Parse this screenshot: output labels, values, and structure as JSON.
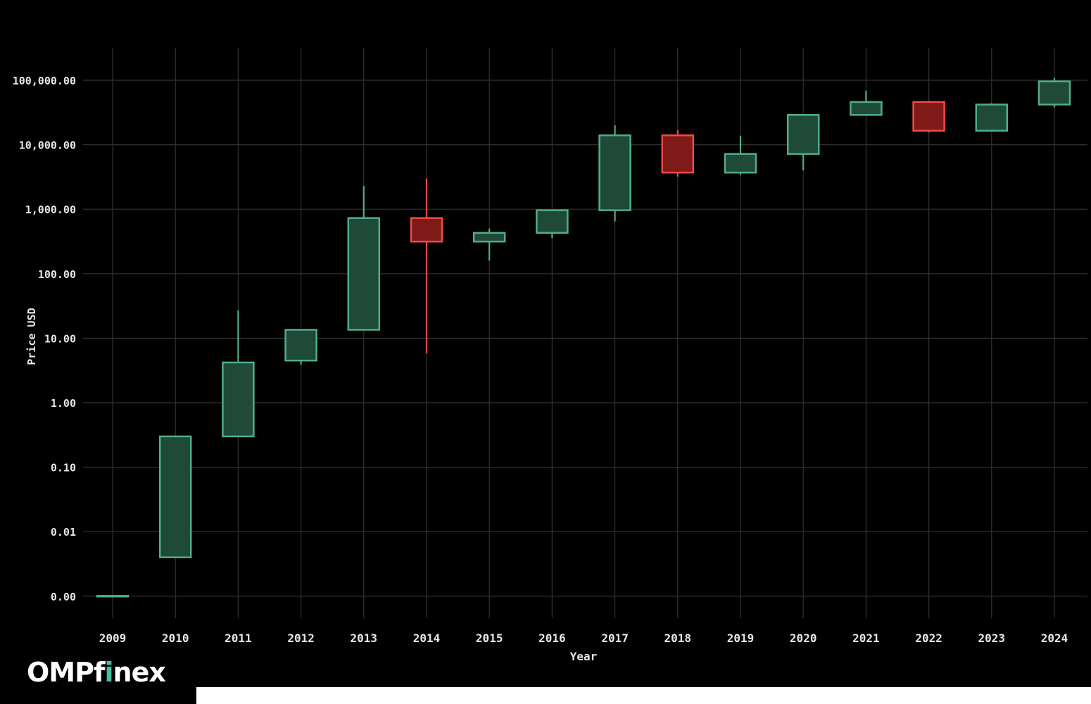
{
  "brand": {
    "name": "OMPfinex",
    "accent": "#3fc1a4"
  },
  "colors": {
    "up_fill": "#1f4a38",
    "up_stroke": "#4fae8a",
    "down_fill": "#7e1a17",
    "down_stroke": "#f04a44",
    "grid": "#333333",
    "text": "#e6e6e6"
  },
  "chart_data": {
    "type": "candlestick",
    "xlabel": "Year",
    "ylabel": "Price USD",
    "yscale": "log",
    "ylim": [
      0.0001,
      100000
    ],
    "ytick_values": [
      0.001,
      0.01,
      0.1,
      1,
      10,
      100,
      1000,
      10000,
      100000
    ],
    "ytick_labels": [
      "0.00",
      "0.01",
      "0.10",
      "1.00",
      "10.00",
      "100.00",
      "1,000.00",
      "10,000.00",
      "100,000.00"
    ],
    "grid": true,
    "categories": [
      "2009",
      "2010",
      "2011",
      "2012",
      "2013",
      "2014",
      "2015",
      "2016",
      "2017",
      "2018",
      "2019",
      "2020",
      "2021",
      "2022",
      "2023",
      "2024"
    ],
    "candles": [
      {
        "year": "2009",
        "open": 0.001,
        "close": 0.001,
        "high": 0.001,
        "low": 0.001,
        "direction": "up"
      },
      {
        "year": "2010",
        "open": 0.004,
        "close": 0.3,
        "high": 0.3,
        "low": 0.004,
        "direction": "up"
      },
      {
        "year": "2011",
        "open": 0.3,
        "close": 4.2,
        "high": 27,
        "low": 0.3,
        "direction": "up"
      },
      {
        "year": "2012",
        "open": 4.5,
        "close": 13.5,
        "high": 13.5,
        "low": 3.9,
        "direction": "up"
      },
      {
        "year": "2013",
        "open": 13.5,
        "close": 730,
        "high": 2300,
        "low": 13.5,
        "direction": "up"
      },
      {
        "year": "2014",
        "open": 730,
        "close": 315,
        "high": 3000,
        "low": 5.8,
        "direction": "down"
      },
      {
        "year": "2015",
        "open": 315,
        "close": 430,
        "high": 500,
        "low": 160,
        "direction": "up"
      },
      {
        "year": "2016",
        "open": 430,
        "close": 965,
        "high": 965,
        "low": 355,
        "direction": "up"
      },
      {
        "year": "2017",
        "open": 965,
        "close": 14000,
        "high": 20000,
        "low": 650,
        "direction": "up"
      },
      {
        "year": "2018",
        "open": 14000,
        "close": 3700,
        "high": 17000,
        "low": 3200,
        "direction": "down"
      },
      {
        "year": "2019",
        "open": 3700,
        "close": 7200,
        "high": 13800,
        "low": 3400,
        "direction": "up"
      },
      {
        "year": "2020",
        "open": 7200,
        "close": 29000,
        "high": 29000,
        "low": 4000,
        "direction": "up"
      },
      {
        "year": "2021",
        "open": 29000,
        "close": 46000,
        "high": 69000,
        "low": 29000,
        "direction": "up"
      },
      {
        "year": "2022",
        "open": 46000,
        "close": 16500,
        "high": 48000,
        "low": 15500,
        "direction": "down"
      },
      {
        "year": "2023",
        "open": 16500,
        "close": 42000,
        "high": 44000,
        "low": 16500,
        "direction": "up"
      },
      {
        "year": "2024",
        "open": 42000,
        "close": 96000,
        "high": 108000,
        "low": 38000,
        "direction": "up"
      }
    ]
  }
}
